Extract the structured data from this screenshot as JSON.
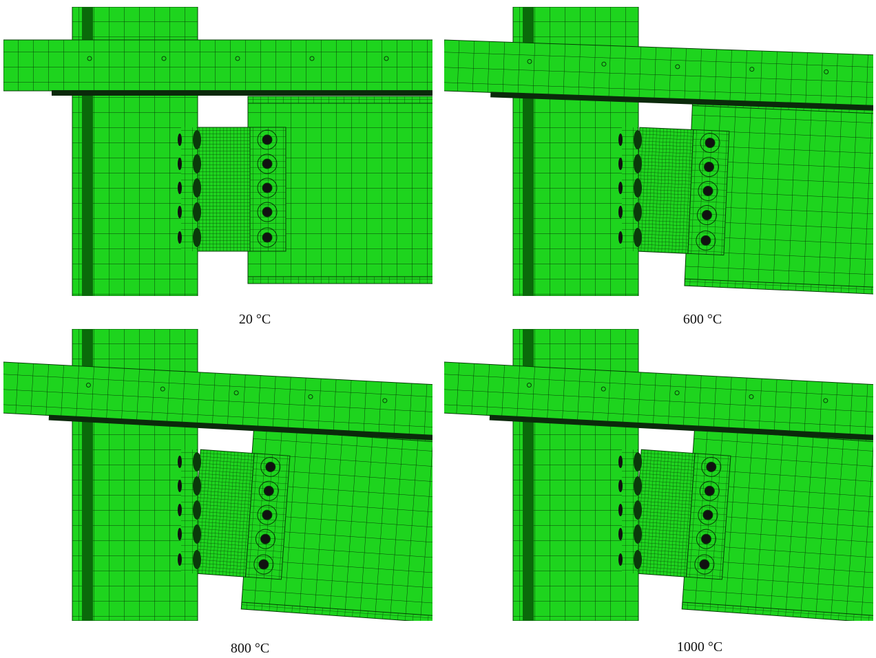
{
  "panels": [
    {
      "label": "20 °C"
    },
    {
      "label": "600 °C"
    },
    {
      "label": "800 °C"
    },
    {
      "label": "1000 °C"
    }
  ]
}
